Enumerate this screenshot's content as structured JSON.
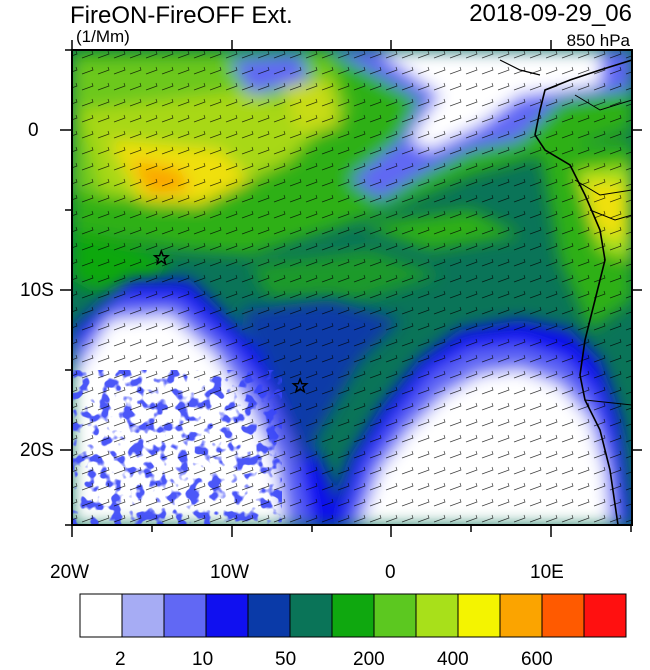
{
  "map": {
    "title_left": "FireON-FireOFF Ext.",
    "title_right": "2018-09-29_06",
    "units": "(1/Mm)",
    "level": "850 hPa",
    "lon_labels": [
      "20W",
      "10W",
      "0",
      "10E"
    ],
    "lat_labels": [
      "0",
      "10S",
      "20S"
    ],
    "markers": [
      {
        "name": "star-marker-north",
        "lon": -14.4,
        "lat": -8.0
      },
      {
        "name": "star-marker-south",
        "lon": -5.7,
        "lat": -16.0
      }
    ]
  },
  "colorbar": {
    "colors": [
      "#ffffff",
      "#a6acf4",
      "#6168f4",
      "#1010f0",
      "#0a3aa8",
      "#0a7458",
      "#0fa80f",
      "#5cc820",
      "#a8e01a",
      "#f4f400",
      "#fba400",
      "#ff5a00",
      "#ff1010"
    ],
    "labels": [
      "2",
      "10",
      "50",
      "200",
      "400",
      "600"
    ]
  }
}
